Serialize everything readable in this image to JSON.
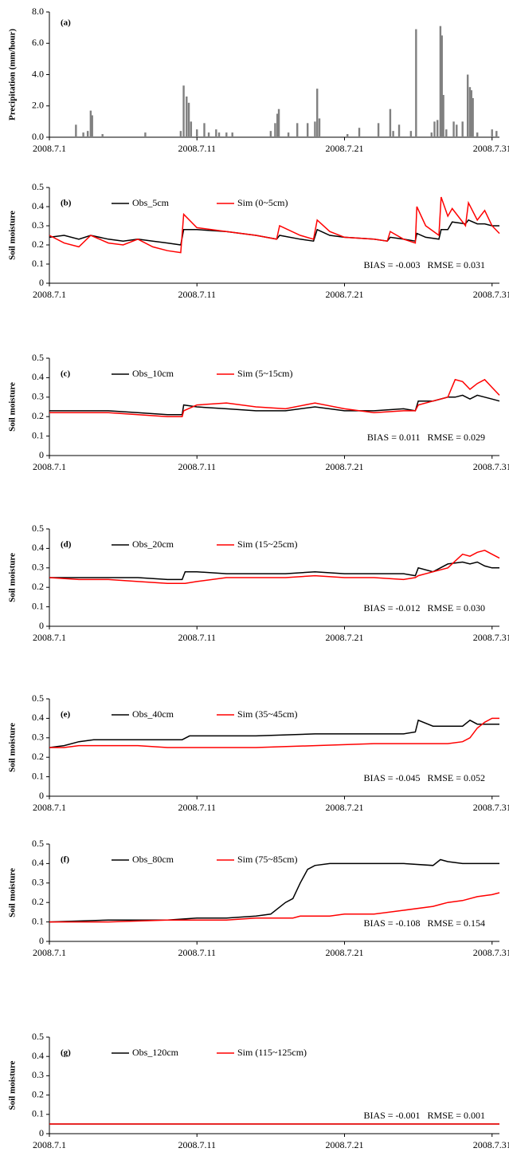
{
  "chart_data": [
    {
      "type": "bar",
      "panel_label": "(a)",
      "y_label": "Precipitation (mm/hour)",
      "color": "#808080",
      "x": [
        1.8,
        2.3,
        2.6,
        2.8,
        2.9,
        3.6,
        6.5,
        8.9,
        9.1,
        9.3,
        9.45,
        9.6,
        10.0,
        10.5,
        10.8,
        11.3,
        11.5,
        12.0,
        12.4,
        15.0,
        15.3,
        15.45,
        15.55,
        16.2,
        16.8,
        17.5,
        18.0,
        18.15,
        18.3,
        20.2,
        21.0,
        22.3,
        23.1,
        23.3,
        23.7,
        24.5,
        24.85,
        25.9,
        26.1,
        26.3,
        26.5,
        26.6,
        26.7,
        26.9,
        27.4,
        27.6,
        28.0,
        28.35,
        28.5,
        28.6,
        28.7,
        29.0,
        30.0,
        30.3
      ],
      "values": [
        0.8,
        0.3,
        0.4,
        1.7,
        1.4,
        0.2,
        0.3,
        0.4,
        3.3,
        2.6,
        2.2,
        1.0,
        0.5,
        0.9,
        0.3,
        0.5,
        0.3,
        0.3,
        0.3,
        0.4,
        0.9,
        1.5,
        1.8,
        0.3,
        0.9,
        0.9,
        1.0,
        3.1,
        1.2,
        0.2,
        0.6,
        0.9,
        1.8,
        0.4,
        0.8,
        0.4,
        6.9,
        0.3,
        1.0,
        1.1,
        7.1,
        6.5,
        2.7,
        0.5,
        1.0,
        0.8,
        1.0,
        4.0,
        3.2,
        3.0,
        2.5,
        0.3,
        0.5,
        0.4
      ],
      "xlim": [
        0,
        30.5
      ],
      "xticks": [
        {
          "value": 0,
          "label": "2008.7.1"
        },
        {
          "value": 10,
          "label": "2008.7.11"
        },
        {
          "value": 20,
          "label": "2008.7.21"
        },
        {
          "value": 30,
          "label": "2008.7.31"
        }
      ],
      "ylim": [
        0,
        8
      ],
      "yticks": [
        {
          "value": 0,
          "label": "0.0"
        },
        {
          "value": 2,
          "label": "2.0"
        },
        {
          "value": 4,
          "label": "4.0"
        },
        {
          "value": 6,
          "label": "6.0"
        },
        {
          "value": 8,
          "label": "8.0"
        }
      ]
    },
    {
      "type": "line",
      "panel_label": "(b)",
      "y_label": "Soil moisture",
      "annotation": "BIAS = -0.003   RMSE = 0.031",
      "x": [
        0,
        1,
        2,
        2.8,
        4,
        5,
        6,
        7,
        8,
        8.9,
        9.1,
        10,
        12,
        14,
        15.4,
        15.6,
        17,
        17.9,
        18.15,
        19,
        20,
        22,
        22.9,
        23.1,
        24,
        24.8,
        24.9,
        25.5,
        26.4,
        26.55,
        27,
        27.3,
        28.2,
        28.4,
        29,
        29.5,
        30,
        30.5
      ],
      "series": [
        {
          "name": "Obs_5cm",
          "color": "#000000",
          "values": [
            0.24,
            0.25,
            0.23,
            0.25,
            0.23,
            0.22,
            0.23,
            0.22,
            0.21,
            0.2,
            0.28,
            0.28,
            0.27,
            0.25,
            0.23,
            0.25,
            0.23,
            0.22,
            0.28,
            0.25,
            0.24,
            0.23,
            0.22,
            0.24,
            0.23,
            0.22,
            0.26,
            0.24,
            0.23,
            0.28,
            0.28,
            0.32,
            0.31,
            0.33,
            0.31,
            0.31,
            0.3,
            0.3
          ]
        },
        {
          "name": "Sim (0~5cm)",
          "color": "#ff0000",
          "values": [
            0.25,
            0.21,
            0.19,
            0.25,
            0.21,
            0.2,
            0.23,
            0.19,
            0.17,
            0.16,
            0.36,
            0.29,
            0.27,
            0.25,
            0.23,
            0.3,
            0.25,
            0.23,
            0.33,
            0.27,
            0.24,
            0.23,
            0.22,
            0.27,
            0.23,
            0.21,
            0.4,
            0.3,
            0.25,
            0.45,
            0.35,
            0.39,
            0.3,
            0.42,
            0.33,
            0.38,
            0.3,
            0.26
          ]
        }
      ],
      "xlim": [
        0,
        30.5
      ],
      "xticks": [
        {
          "value": 0,
          "label": "2008.7.1"
        },
        {
          "value": 10,
          "label": "2008.7.11"
        },
        {
          "value": 20,
          "label": "2008.7.21"
        },
        {
          "value": 30,
          "label": "2008.7.31"
        }
      ],
      "ylim": [
        0,
        0.5
      ],
      "yticks": [
        0,
        0.1,
        0.2,
        0.3,
        0.4,
        0.5
      ]
    },
    {
      "type": "line",
      "panel_label": "(c)",
      "y_label": "Soil moisture",
      "annotation": "BIAS = 0.011   RMSE = 0.029",
      "x": [
        0,
        2,
        4,
        6,
        8,
        9,
        9.1,
        10,
        12,
        14,
        16,
        18,
        20,
        22,
        24,
        24.8,
        25,
        26,
        27,
        27.5,
        28,
        28.5,
        29,
        29.5,
        30,
        30.5
      ],
      "series": [
        {
          "name": "Obs_10cm",
          "color": "#000000",
          "values": [
            0.23,
            0.23,
            0.23,
            0.22,
            0.21,
            0.21,
            0.26,
            0.25,
            0.24,
            0.23,
            0.23,
            0.25,
            0.23,
            0.23,
            0.24,
            0.23,
            0.28,
            0.28,
            0.3,
            0.3,
            0.31,
            0.29,
            0.31,
            0.3,
            0.29,
            0.28
          ]
        },
        {
          "name": "Sim (5~15cm)",
          "color": "#ff0000",
          "values": [
            0.22,
            0.22,
            0.22,
            0.21,
            0.2,
            0.2,
            0.23,
            0.26,
            0.27,
            0.25,
            0.24,
            0.27,
            0.24,
            0.22,
            0.23,
            0.23,
            0.26,
            0.28,
            0.3,
            0.39,
            0.38,
            0.34,
            0.37,
            0.39,
            0.35,
            0.31
          ]
        }
      ],
      "xlim": [
        0,
        30.5
      ],
      "xticks": [
        {
          "value": 0,
          "label": "2008.7.1"
        },
        {
          "value": 10,
          "label": "2008.7.11"
        },
        {
          "value": 20,
          "label": "2008.7.21"
        },
        {
          "value": 30,
          "label": "2008.7.31"
        }
      ],
      "ylim": [
        0,
        0.5
      ],
      "yticks": [
        0,
        0.1,
        0.2,
        0.3,
        0.4,
        0.5
      ]
    },
    {
      "type": "line",
      "panel_label": "(d)",
      "y_label": "Soil moisture",
      "annotation": "BIAS = -0.012   RMSE = 0.030",
      "x": [
        0,
        2,
        4,
        6,
        8,
        9,
        9.2,
        10,
        12,
        14,
        16,
        18,
        20,
        22,
        24,
        24.8,
        25,
        26,
        27,
        28,
        28.5,
        29,
        29.5,
        30,
        30.5
      ],
      "series": [
        {
          "name": "Obs_20cm",
          "color": "#000000",
          "values": [
            0.25,
            0.25,
            0.25,
            0.25,
            0.24,
            0.24,
            0.28,
            0.28,
            0.27,
            0.27,
            0.27,
            0.28,
            0.27,
            0.27,
            0.27,
            0.26,
            0.3,
            0.28,
            0.32,
            0.33,
            0.32,
            0.33,
            0.31,
            0.3,
            0.3
          ]
        },
        {
          "name": "Sim (15~25cm)",
          "color": "#ff0000",
          "values": [
            0.25,
            0.24,
            0.24,
            0.23,
            0.22,
            0.22,
            0.22,
            0.23,
            0.25,
            0.25,
            0.25,
            0.26,
            0.25,
            0.25,
            0.24,
            0.25,
            0.26,
            0.28,
            0.3,
            0.37,
            0.36,
            0.38,
            0.39,
            0.37,
            0.35
          ]
        }
      ],
      "xlim": [
        0,
        30.5
      ],
      "xticks": [
        {
          "value": 0,
          "label": "2008.7.1"
        },
        {
          "value": 10,
          "label": "2008.7.11"
        },
        {
          "value": 20,
          "label": "2008.7.21"
        },
        {
          "value": 30,
          "label": "2008.7.31"
        }
      ],
      "ylim": [
        0,
        0.5
      ],
      "yticks": [
        0,
        0.1,
        0.2,
        0.3,
        0.4,
        0.5
      ]
    },
    {
      "type": "line",
      "panel_label": "(e)",
      "y_label": "Soil moisture",
      "annotation": "BIAS = -0.045   RMSE = 0.052",
      "x": [
        0,
        1,
        2,
        3,
        4,
        6,
        8,
        9,
        9.5,
        10,
        14,
        18,
        22,
        24,
        24.8,
        25,
        26,
        27,
        28,
        28.5,
        29,
        29.5,
        30,
        30.5
      ],
      "series": [
        {
          "name": "Obs_40cm",
          "color": "#000000",
          "values": [
            0.25,
            0.26,
            0.28,
            0.29,
            0.29,
            0.29,
            0.29,
            0.29,
            0.31,
            0.31,
            0.31,
            0.32,
            0.32,
            0.32,
            0.33,
            0.39,
            0.36,
            0.36,
            0.36,
            0.39,
            0.37,
            0.37,
            0.37,
            0.37
          ]
        },
        {
          "name": "Sim (35~45cm)",
          "color": "#ff0000",
          "values": [
            0.25,
            0.25,
            0.26,
            0.26,
            0.26,
            0.26,
            0.25,
            0.25,
            0.25,
            0.25,
            0.25,
            0.26,
            0.27,
            0.27,
            0.27,
            0.27,
            0.27,
            0.27,
            0.28,
            0.3,
            0.35,
            0.38,
            0.4,
            0.4
          ]
        }
      ],
      "xlim": [
        0,
        30.5
      ],
      "xticks": [
        {
          "value": 0,
          "label": "2008.7.1"
        },
        {
          "value": 10,
          "label": "2008.7.11"
        },
        {
          "value": 20,
          "label": "2008.7.21"
        },
        {
          "value": 30,
          "label": "2008.7.31"
        }
      ],
      "ylim": [
        0,
        0.5
      ],
      "yticks": [
        0,
        0.1,
        0.2,
        0.3,
        0.4,
        0.5
      ]
    },
    {
      "type": "line",
      "panel_label": "(f)",
      "y_label": "Soil moisture",
      "annotation": "BIAS = -0.108   RMSE = 0.154",
      "x": [
        0,
        4,
        8,
        10,
        12,
        14,
        15,
        16,
        16.5,
        17,
        17.5,
        18,
        19,
        20,
        22,
        24,
        26,
        26.5,
        27,
        28,
        29,
        30,
        30.5
      ],
      "series": [
        {
          "name": "Obs_80cm",
          "color": "#000000",
          "values": [
            0.1,
            0.11,
            0.11,
            0.12,
            0.12,
            0.13,
            0.14,
            0.2,
            0.22,
            0.3,
            0.37,
            0.39,
            0.4,
            0.4,
            0.4,
            0.4,
            0.39,
            0.42,
            0.41,
            0.4,
            0.4,
            0.4,
            0.4
          ]
        },
        {
          "name": "Sim (75~85cm)",
          "color": "#ff0000",
          "values": [
            0.1,
            0.1,
            0.11,
            0.11,
            0.11,
            0.12,
            0.12,
            0.12,
            0.12,
            0.13,
            0.13,
            0.13,
            0.13,
            0.14,
            0.14,
            0.16,
            0.18,
            0.19,
            0.2,
            0.21,
            0.23,
            0.24,
            0.25
          ]
        }
      ],
      "xlim": [
        0,
        30.5
      ],
      "xticks": [
        {
          "value": 0,
          "label": "2008.7.1"
        },
        {
          "value": 10,
          "label": "2008.7.11"
        },
        {
          "value": 20,
          "label": "2008.7.21"
        },
        {
          "value": 30,
          "label": "2008.7.31"
        }
      ],
      "ylim": [
        0,
        0.5
      ],
      "yticks": [
        0,
        0.1,
        0.2,
        0.3,
        0.4,
        0.5
      ]
    },
    {
      "type": "line",
      "panel_label": "(g)",
      "y_label": "Soil moisture",
      "annotation": "BIAS = -0.001   RMSE = 0.001",
      "x": [
        0,
        30.5
      ],
      "series": [
        {
          "name": "Obs_120cm",
          "color": "#000000",
          "values": [
            0.05,
            0.05
          ]
        },
        {
          "name": "Sim (115~125cm)",
          "color": "#ff0000",
          "values": [
            0.05,
            0.05
          ]
        }
      ],
      "xlim": [
        0,
        30.5
      ],
      "xticks": [
        {
          "value": 0,
          "label": "2008.7.1"
        },
        {
          "value": 10,
          "label": "2008.7.11"
        },
        {
          "value": 20,
          "label": "2008.7.21"
        },
        {
          "value": 30,
          "label": "2008.7.31"
        }
      ],
      "ylim": [
        0,
        0.5
      ],
      "yticks": [
        0,
        0.1,
        0.2,
        0.3,
        0.4,
        0.5
      ]
    }
  ]
}
